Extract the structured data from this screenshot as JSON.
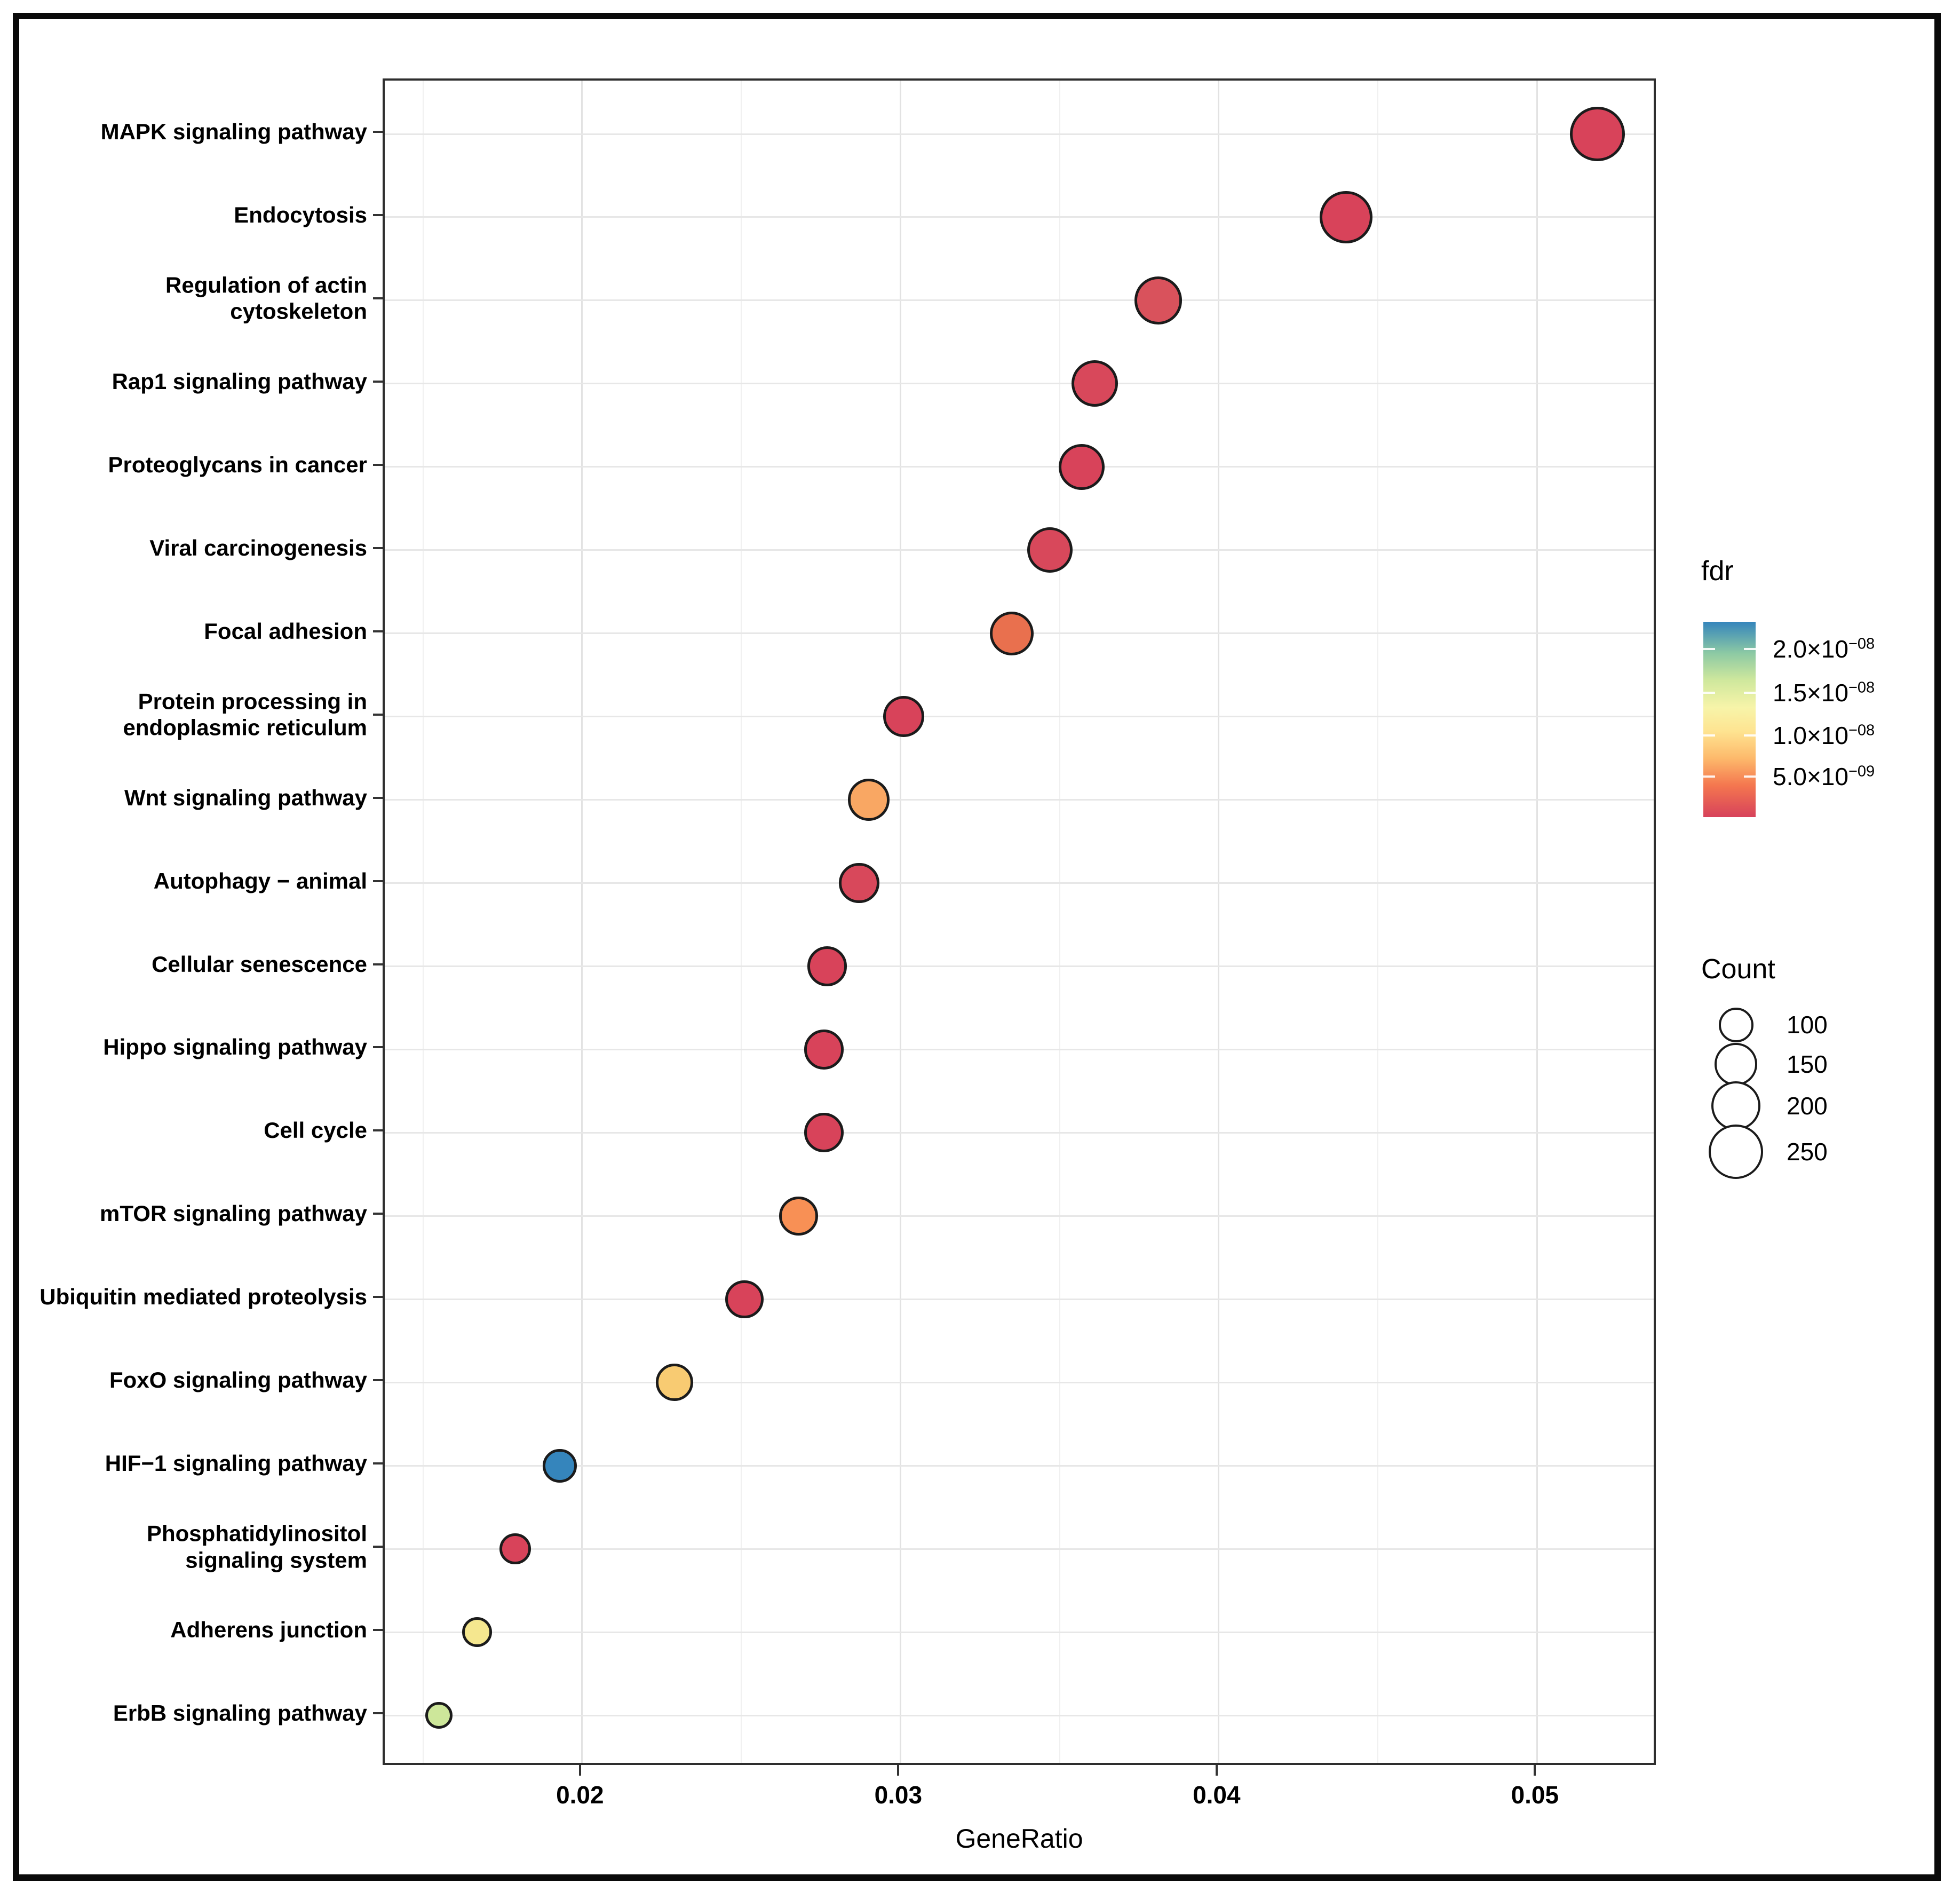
{
  "window": {
    "background": "#ffffff",
    "frame_color": "#0a0a0a"
  },
  "chart_data": {
    "type": "scatter",
    "title": "",
    "xlabel": "GeneRatio",
    "ylabel": "",
    "xlim": [
      0.0138,
      0.0538
    ],
    "x_ticks": [
      {
        "value": 0.02,
        "label": "0.02"
      },
      {
        "value": 0.03,
        "label": "0.03"
      },
      {
        "value": 0.04,
        "label": "0.04"
      },
      {
        "value": 0.05,
        "label": "0.05"
      }
    ],
    "x_minor_ticks": [
      0.015,
      0.025,
      0.035,
      0.045
    ],
    "grid": "major-and-minor-x, per-row-y",
    "pathways": [
      {
        "label": "MAPK signaling pathway",
        "lines": [
          "MAPK signaling pathway"
        ],
        "gene_ratio": 0.0519,
        "count": 250,
        "fdr": 1e-09,
        "color": "#d8435a"
      },
      {
        "label": "Endocytosis",
        "lines": [
          "Endocytosis"
        ],
        "gene_ratio": 0.044,
        "count": 230,
        "fdr": 1e-09,
        "color": "#d8435a"
      },
      {
        "label": "Regulation of actin cytoskeleton",
        "lines": [
          "Regulation of actin",
          "cytoskeleton"
        ],
        "gene_ratio": 0.0381,
        "count": 190,
        "fdr": 2e-09,
        "color": "#d9525c"
      },
      {
        "label": "Rap1 signaling pathway",
        "lines": [
          "Rap1 signaling pathway"
        ],
        "gene_ratio": 0.0361,
        "count": 180,
        "fdr": 1.5e-09,
        "color": "#d8485b"
      },
      {
        "label": "Proteoglycans in cancer",
        "lines": [
          "Proteoglycans in cancer"
        ],
        "gene_ratio": 0.0357,
        "count": 175,
        "fdr": 1.2e-09,
        "color": "#d8435a"
      },
      {
        "label": "Viral carcinogenesis",
        "lines": [
          "Viral carcinogenesis"
        ],
        "gene_ratio": 0.0347,
        "count": 170,
        "fdr": 1.5e-09,
        "color": "#d8485b"
      },
      {
        "label": "Focal adhesion",
        "lines": [
          "Focal adhesion"
        ],
        "gene_ratio": 0.0335,
        "count": 160,
        "fdr": 4.5e-09,
        "color": "#e9704e"
      },
      {
        "label": "Protein processing in endoplasmic reticulum",
        "lines": [
          "Protein processing in",
          "endoplasmic reticulum"
        ],
        "gene_ratio": 0.0301,
        "count": 140,
        "fdr": 1.5e-09,
        "color": "#d8435a"
      },
      {
        "label": "Wnt signaling pathway",
        "lines": [
          "Wnt signaling pathway"
        ],
        "gene_ratio": 0.029,
        "count": 145,
        "fdr": 7e-09,
        "color": "#f9a763"
      },
      {
        "label": "Autophagy − animal",
        "lines": [
          "Autophagy − animal"
        ],
        "gene_ratio": 0.0287,
        "count": 135,
        "fdr": 1.8e-09,
        "color": "#d8485b"
      },
      {
        "label": "Cellular senescence",
        "lines": [
          "Cellular senescence"
        ],
        "gene_ratio": 0.0277,
        "count": 130,
        "fdr": 2e-09,
        "color": "#d8435a"
      },
      {
        "label": "Hippo signaling pathway",
        "lines": [
          "Hippo signaling pathway"
        ],
        "gene_ratio": 0.0276,
        "count": 130,
        "fdr": 2e-09,
        "color": "#d8435a"
      },
      {
        "label": "Cell cycle",
        "lines": [
          "Cell cycle"
        ],
        "gene_ratio": 0.0276,
        "count": 130,
        "fdr": 2e-09,
        "color": "#d8435a"
      },
      {
        "label": "mTOR signaling pathway",
        "lines": [
          "mTOR signaling pathway"
        ],
        "gene_ratio": 0.0268,
        "count": 125,
        "fdr": 6e-09,
        "color": "#f89055"
      },
      {
        "label": "Ubiquitin mediated proteolysis",
        "lines": [
          "Ubiquitin mediated proteolysis"
        ],
        "gene_ratio": 0.0251,
        "count": 120,
        "fdr": 2.2e-09,
        "color": "#d8435a"
      },
      {
        "label": "FoxO signaling pathway",
        "lines": [
          "FoxO signaling pathway"
        ],
        "gene_ratio": 0.0229,
        "count": 115,
        "fdr": 9.5e-09,
        "color": "#f8cb72"
      },
      {
        "label": "HIF−1 signaling pathway",
        "lines": [
          "HIF−1 signaling pathway"
        ],
        "gene_ratio": 0.0193,
        "count": 95,
        "fdr": 2.2e-08,
        "color": "#3585bc"
      },
      {
        "label": "Phosphatidylinositol signaling system",
        "lines": [
          "Phosphatidylinositol",
          "signaling system"
        ],
        "gene_ratio": 0.0179,
        "count": 80,
        "fdr": 2.5e-09,
        "color": "#d8435a"
      },
      {
        "label": "Adherens junction",
        "lines": [
          "Adherens junction"
        ],
        "gene_ratio": 0.0167,
        "count": 75,
        "fdr": 1.2e-08,
        "color": "#f5e78f"
      },
      {
        "label": "ErbB signaling pathway",
        "lines": [
          "ErbB signaling pathway"
        ],
        "gene_ratio": 0.0155,
        "count": 60,
        "fdr": 1.5e-08,
        "color": "#cde79a"
      }
    ],
    "legend_fdr": {
      "title": "fdr",
      "range": [
        1.5e-10,
        2.32e-08
      ],
      "ticks": [
        {
          "mantissa": "2.0×10",
          "exp": "−08",
          "value": 2e-08,
          "frac": 0.14
        },
        {
          "mantissa": "1.5×10",
          "exp": "−08",
          "value": 1.5e-08,
          "frac": 0.363
        },
        {
          "mantissa": "1.0×10",
          "exp": "−08",
          "value": 1e-08,
          "frac": 0.582
        },
        {
          "mantissa": "5.0×10",
          "exp": "−09",
          "value": 5e-09,
          "frac": 0.792
        }
      ],
      "gradient": [
        {
          "pos": 0,
          "color": "#3585bc"
        },
        {
          "pos": 16,
          "color": "#8cc9a4"
        },
        {
          "pos": 30,
          "color": "#cfe89d"
        },
        {
          "pos": 44,
          "color": "#f7f4a9"
        },
        {
          "pos": 56,
          "color": "#fee491"
        },
        {
          "pos": 70,
          "color": "#fdb96b"
        },
        {
          "pos": 84,
          "color": "#f4764f"
        },
        {
          "pos": 100,
          "color": "#d7425b"
        }
      ],
      "legend_position": "right"
    },
    "legend_count": {
      "title": "Count",
      "items": [
        100,
        150,
        200,
        250
      ]
    }
  }
}
